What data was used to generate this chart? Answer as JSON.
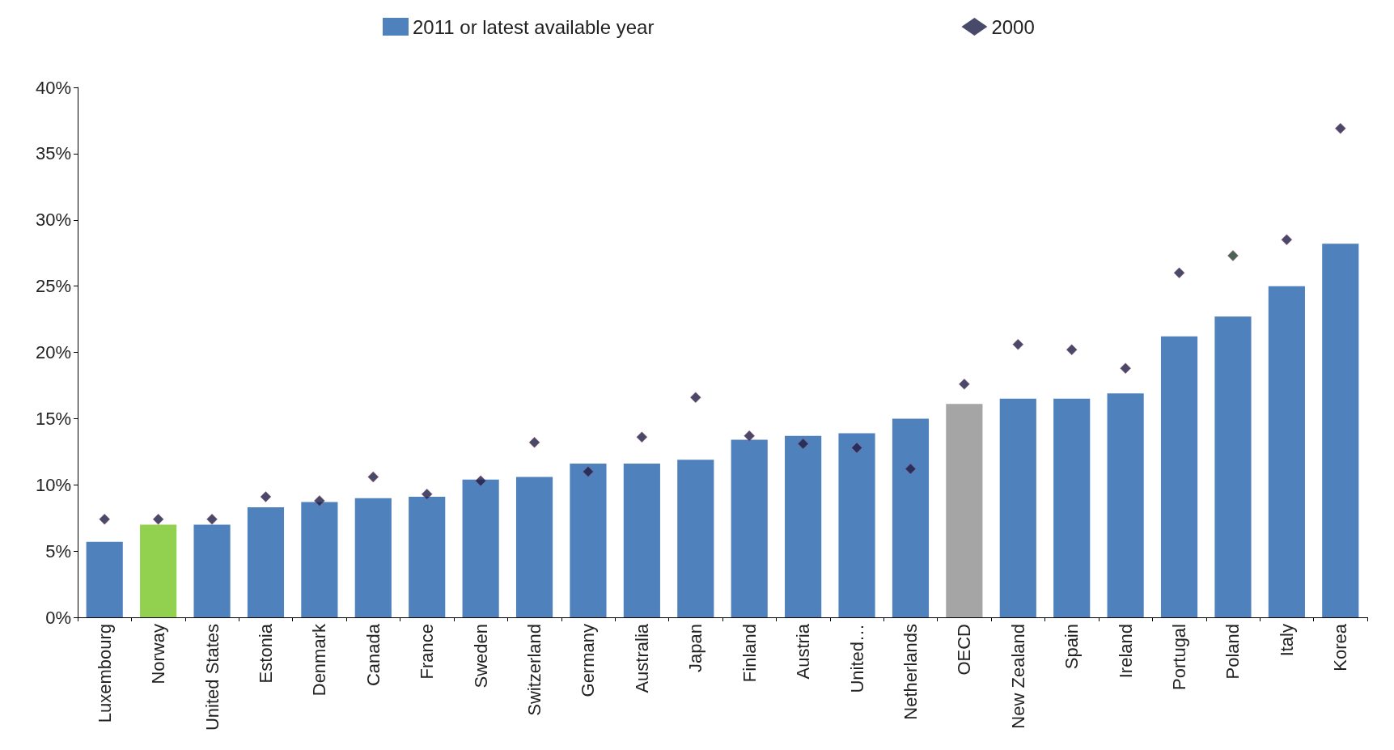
{
  "chart_data": {
    "type": "bar",
    "categories": [
      "Luxembourg",
      "Norway",
      "United States",
      "Estonia",
      "Denmark",
      "Canada",
      "France",
      "Sweden",
      "Switzerland",
      "Germany",
      "Australia",
      "Japan",
      "Finland",
      "Austria",
      "United…",
      "Netherlands",
      "OECD",
      "New Zealand",
      "Spain",
      "Ireland",
      "Portugal",
      "Poland",
      "Italy",
      "Korea"
    ],
    "series": [
      {
        "name": "2011 or latest available year",
        "color": "#4f81bd",
        "colors": [
          "#4f81bd",
          "#92d050",
          "#4f81bd",
          "#4f81bd",
          "#4f81bd",
          "#4f81bd",
          "#4f81bd",
          "#4f81bd",
          "#4f81bd",
          "#4f81bd",
          "#4f81bd",
          "#4f81bd",
          "#4f81bd",
          "#4f81bd",
          "#4f81bd",
          "#4f81bd",
          "#a5a5a5",
          "#4f81bd",
          "#4f81bd",
          "#4f81bd",
          "#4f81bd",
          "#4f81bd",
          "#4f81bd",
          "#4f81bd"
        ],
        "values": [
          5.7,
          7.0,
          7.0,
          8.3,
          8.7,
          9.0,
          9.1,
          10.4,
          10.6,
          11.6,
          11.6,
          11.9,
          13.4,
          13.7,
          13.9,
          15.0,
          16.1,
          16.5,
          16.5,
          16.9,
          21.2,
          22.7,
          25.0,
          28.2
        ]
      },
      {
        "name": "2000",
        "type": "scatter",
        "color": "#1c1c44",
        "colors": [
          "#1c1c44",
          "#1c1c44",
          "#1c1c44",
          "#1c1c44",
          "#1c1c44",
          "#1c1c44",
          "#1c1c44",
          "#1c1c44",
          "#1c1c44",
          "#1c1c44",
          "#1c1c44",
          "#1c1c44",
          "#1c1c44",
          "#1c1c44",
          "#1c1c44",
          "#1c1c44",
          "#1c1c44",
          "#1c1c44",
          "#1c1c44",
          "#1c1c44",
          "#1c1c44",
          "#1c3c2c",
          "#1c1c44",
          "#1c1c44"
        ],
        "marker": "diamond",
        "values": [
          7.4,
          7.4,
          7.4,
          9.1,
          8.8,
          10.6,
          9.3,
          10.3,
          13.2,
          11.0,
          13.6,
          16.6,
          13.7,
          13.1,
          12.8,
          11.2,
          17.6,
          20.6,
          20.2,
          18.8,
          26.0,
          27.3,
          28.5,
          36.9
        ]
      }
    ],
    "ylim": [
      0,
      40
    ],
    "yticks": [
      {
        "value": 0,
        "label": "0%"
      },
      {
        "value": 5,
        "label": "5%"
      },
      {
        "value": 10,
        "label": "10%"
      },
      {
        "value": 15,
        "label": "15%"
      },
      {
        "value": 20,
        "label": "20%"
      },
      {
        "value": 25,
        "label": "25%"
      },
      {
        "value": 30,
        "label": "30%"
      },
      {
        "value": 35,
        "label": "35%"
      },
      {
        "value": 40,
        "label": "40%"
      }
    ],
    "grid": false,
    "legend": "top"
  }
}
